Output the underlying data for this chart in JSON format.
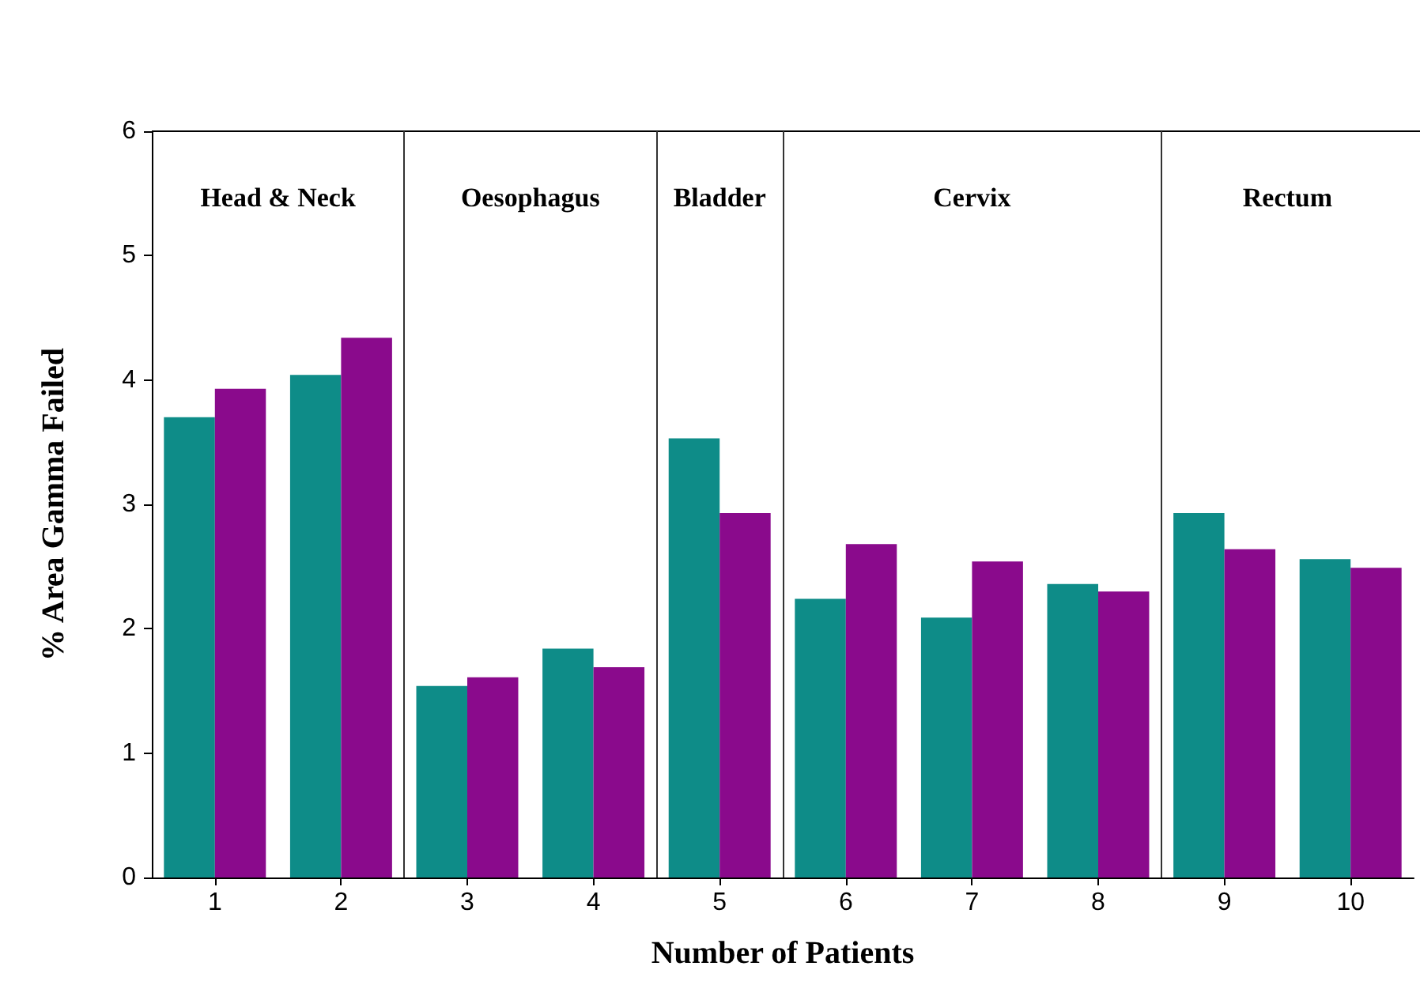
{
  "chart_data": {
    "type": "bar",
    "xlabel": "Number of Patients",
    "ylabel": "% Area Gamma Failed",
    "x": [
      1,
      2,
      3,
      4,
      5,
      6,
      7,
      8,
      9,
      10
    ],
    "xlim": [
      0.5,
      10.5
    ],
    "xticks": [
      1,
      2,
      3,
      4,
      5,
      6,
      7,
      8,
      9,
      10
    ],
    "ylim": [
      0,
      6
    ],
    "yticks": [
      0,
      1,
      2,
      3,
      4,
      5,
      6
    ],
    "grid": false,
    "series": [
      {
        "color": "#0e8c88",
        "values": [
          3.7,
          4.04,
          1.54,
          1.84,
          3.53,
          2.24,
          2.09,
          2.36,
          2.93,
          2.56
        ]
      },
      {
        "color": "#8a0a8c",
        "values": [
          3.93,
          4.34,
          1.61,
          1.69,
          2.93,
          2.68,
          2.54,
          2.3,
          2.64,
          2.49
        ]
      }
    ],
    "ref_lines": [
      {
        "axis": "x",
        "value": 2.5,
        "color": "#333333"
      },
      {
        "axis": "x",
        "value": 4.5,
        "color": "#333333"
      },
      {
        "axis": "x",
        "value": 5.5,
        "color": "#333333"
      },
      {
        "axis": "x",
        "value": 8.5,
        "color": "#333333"
      }
    ],
    "annotations": [
      "Head & Neck",
      "Oesophagus",
      "Bladder",
      "Cervix",
      "Rectum"
    ]
  }
}
